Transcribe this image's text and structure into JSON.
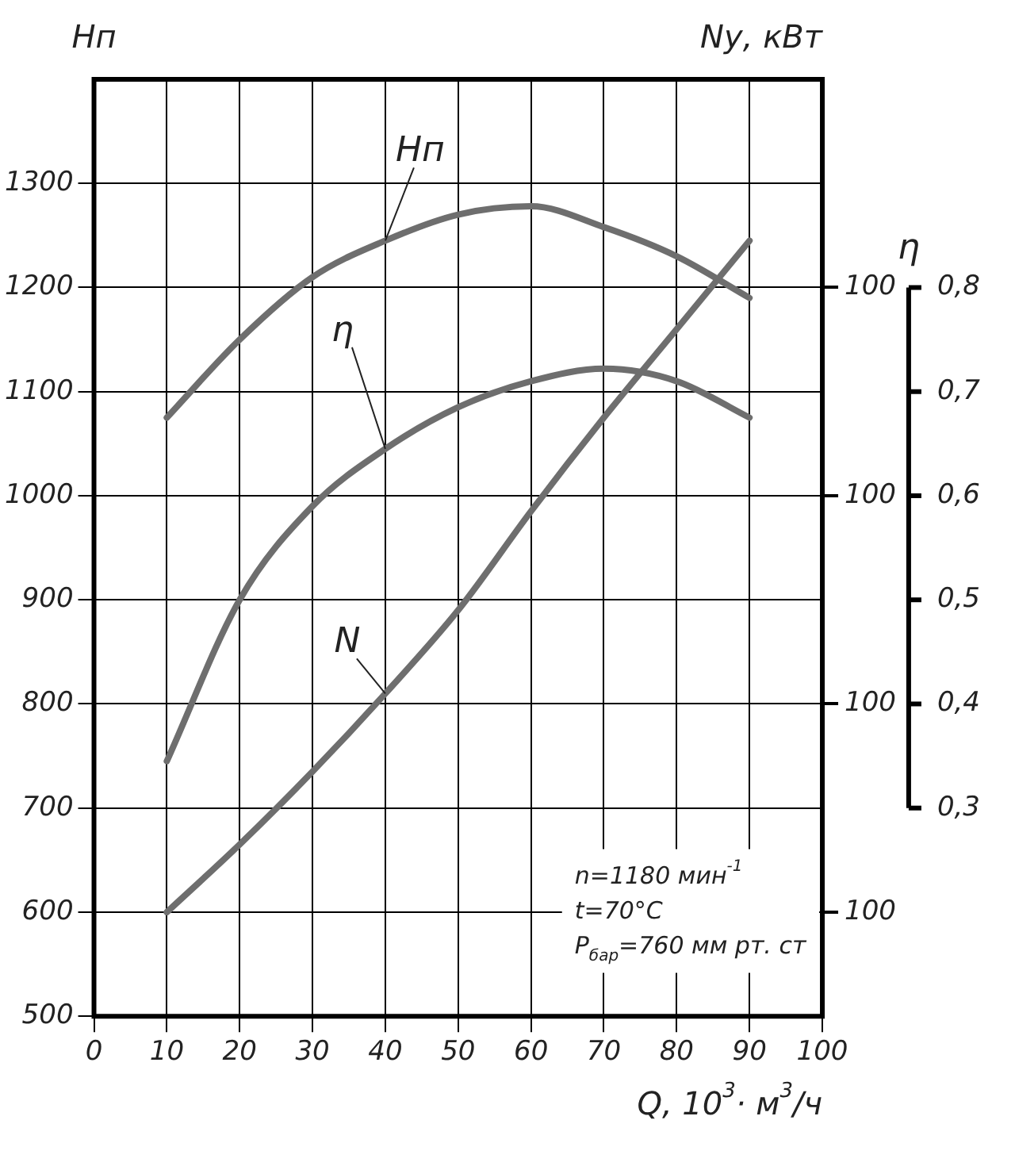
{
  "chart_data": {
    "type": "line",
    "xlabel": "Q, 10$^{3}$· м$^{3}$/ч",
    "ylabel": "Hп",
    "y2label": "Nу, кВт",
    "y3label": "η",
    "x": [
      10,
      20,
      30,
      40,
      50,
      60,
      70,
      80,
      90
    ],
    "series": [
      {
        "name": "Hп",
        "color": "#6e6e6e",
        "axis": "y",
        "values": [
          1075,
          1150,
          1210,
          1245,
          1270,
          1278,
          1258,
          1230,
          1190
        ]
      },
      {
        "name": "η",
        "color": "#6e6e6e",
        "axis": "y3",
        "values": [
          0.345,
          0.5,
          0.59,
          0.645,
          0.685,
          0.71,
          0.722,
          0.71,
          0.675
        ]
      },
      {
        "name": "N",
        "color": "#6e6e6e",
        "values": [
          600,
          665,
          735,
          810,
          890,
          985,
          1075,
          1160,
          1245
        ]
      }
    ],
    "xlim": [
      0,
      100
    ],
    "xticks": [
      0,
      10,
      20,
      30,
      40,
      50,
      60,
      70,
      80,
      90,
      100
    ],
    "ylim": [
      500,
      1400
    ],
    "yticks": [
      500,
      600,
      700,
      800,
      900,
      1000,
      1100,
      1200,
      1300
    ],
    "y2_categories": [
      null,
      null,
      "100",
      null,
      "100",
      null,
      "100",
      null,
      "100",
      null
    ],
    "y3lim": [
      0.1,
      1.0
    ],
    "y3ticks": [
      {
        "value": 0.3,
        "label": "0,3"
      },
      {
        "value": 0.4,
        "label": "0,4"
      },
      {
        "value": 0.5,
        "label": "0,5"
      },
      {
        "value": 0.6,
        "label": "0,6"
      },
      {
        "value": 0.7,
        "label": "0,7"
      },
      {
        "value": 0.8,
        "label": "0,8"
      }
    ],
    "annotations": [
      "n=1180 мин$^{-1}$",
      "t=70°C",
      "P$_{бар}$=760 мм рт. ст"
    ],
    "grid": true,
    "legend": false,
    "marker": "none",
    "line_style": "solid"
  }
}
